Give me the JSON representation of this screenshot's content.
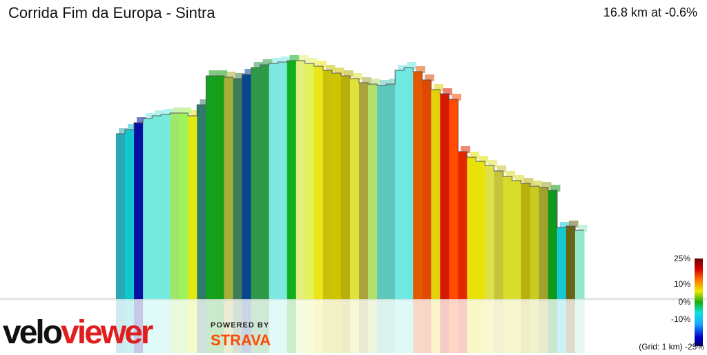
{
  "header": {
    "title": "Corrida Fim da Europa - Sintra",
    "summary": "16.8 km at -0.6%"
  },
  "branding": {
    "veloviewer": "veloviewer",
    "powered_by": "POWERED BY",
    "strava": "STRAVA"
  },
  "legend": {
    "grid_note": "(Grid: 1 km)",
    "ticks": [
      "25%",
      "10%",
      "0%",
      "-10%",
      "-25%"
    ]
  },
  "colors": {
    "velo_black": "#111111",
    "velo_red": "#e01e1e",
    "strava_orange": "#fc4c02"
  },
  "chart_data": {
    "type": "area",
    "title": "Corrida Fim da Europa - Sintra",
    "total_distance_km": 16.8,
    "avg_gradient_pct": -0.6,
    "colorscale_range_pct": [
      -25,
      25
    ],
    "elevation_shape_note": "3D elevation profile; heights relative units",
    "segments": [
      {
        "h": 240,
        "c": "#2aa8b8"
      },
      {
        "h": 246,
        "c": "#12c7d0"
      },
      {
        "h": 256,
        "c": "#0410a0"
      },
      {
        "h": 262,
        "c": "#76eadf"
      },
      {
        "h": 266,
        "c": "#76eadf"
      },
      {
        "h": 268,
        "c": "#76eadf"
      },
      {
        "h": 270,
        "c": "#9ce86a"
      },
      {
        "h": 270,
        "c": "#9ef35a"
      },
      {
        "h": 266,
        "c": "#e2ea10"
      },
      {
        "h": 282,
        "c": "#2f7a6a"
      },
      {
        "h": 324,
        "c": "#14a11e"
      },
      {
        "h": 324,
        "c": "#15a017"
      },
      {
        "h": 322,
        "c": "#a7ae3c"
      },
      {
        "h": 320,
        "c": "#3c7c56"
      },
      {
        "h": 326,
        "c": "#0a4690"
      },
      {
        "h": 336,
        "c": "#2e9a48"
      },
      {
        "h": 340,
        "c": "#2e9a48"
      },
      {
        "h": 342,
        "c": "#7ee8e0"
      },
      {
        "h": 344,
        "c": "#7ee8e0"
      },
      {
        "h": 346,
        "c": "#0fb020"
      },
      {
        "h": 346,
        "c": "#e3ef7a"
      },
      {
        "h": 342,
        "c": "#e3f25a"
      },
      {
        "h": 338,
        "c": "#ece51a"
      },
      {
        "h": 332,
        "c": "#c8c20a"
      },
      {
        "h": 328,
        "c": "#cfc400"
      },
      {
        "h": 324,
        "c": "#b8b00a"
      },
      {
        "h": 320,
        "c": "#dee23a"
      },
      {
        "h": 314,
        "c": "#a9a43c"
      },
      {
        "h": 312,
        "c": "#b5df6c"
      },
      {
        "h": 310,
        "c": "#5ec7bb"
      },
      {
        "h": 312,
        "c": "#5ec7bb"
      },
      {
        "h": 332,
        "c": "#6ee8e0"
      },
      {
        "h": 336,
        "c": "#6ee8e0"
      },
      {
        "h": 330,
        "c": "#e35800"
      },
      {
        "h": 318,
        "c": "#e04a00"
      },
      {
        "h": 304,
        "c": "#e3d10a"
      },
      {
        "h": 298,
        "c": "#d51800"
      },
      {
        "h": 290,
        "c": "#ff4b00"
      },
      {
        "h": 214,
        "c": "#e12800"
      },
      {
        "h": 206,
        "c": "#e8e20a"
      },
      {
        "h": 200,
        "c": "#e8e20a"
      },
      {
        "h": 194,
        "c": "#e0e04a"
      },
      {
        "h": 186,
        "c": "#c5c43a"
      },
      {
        "h": 178,
        "c": "#d8dc2a"
      },
      {
        "h": 172,
        "c": "#d8dc2a"
      },
      {
        "h": 168,
        "c": "#b7b10a"
      },
      {
        "h": 164,
        "c": "#c9cb20"
      },
      {
        "h": 162,
        "c": "#a1a12c"
      },
      {
        "h": 158,
        "c": "#0f9a1b"
      },
      {
        "h": 104,
        "c": "#16c8d2"
      },
      {
        "h": 106,
        "c": "#6a6418"
      },
      {
        "h": 100,
        "c": "#93e8c9"
      }
    ]
  }
}
